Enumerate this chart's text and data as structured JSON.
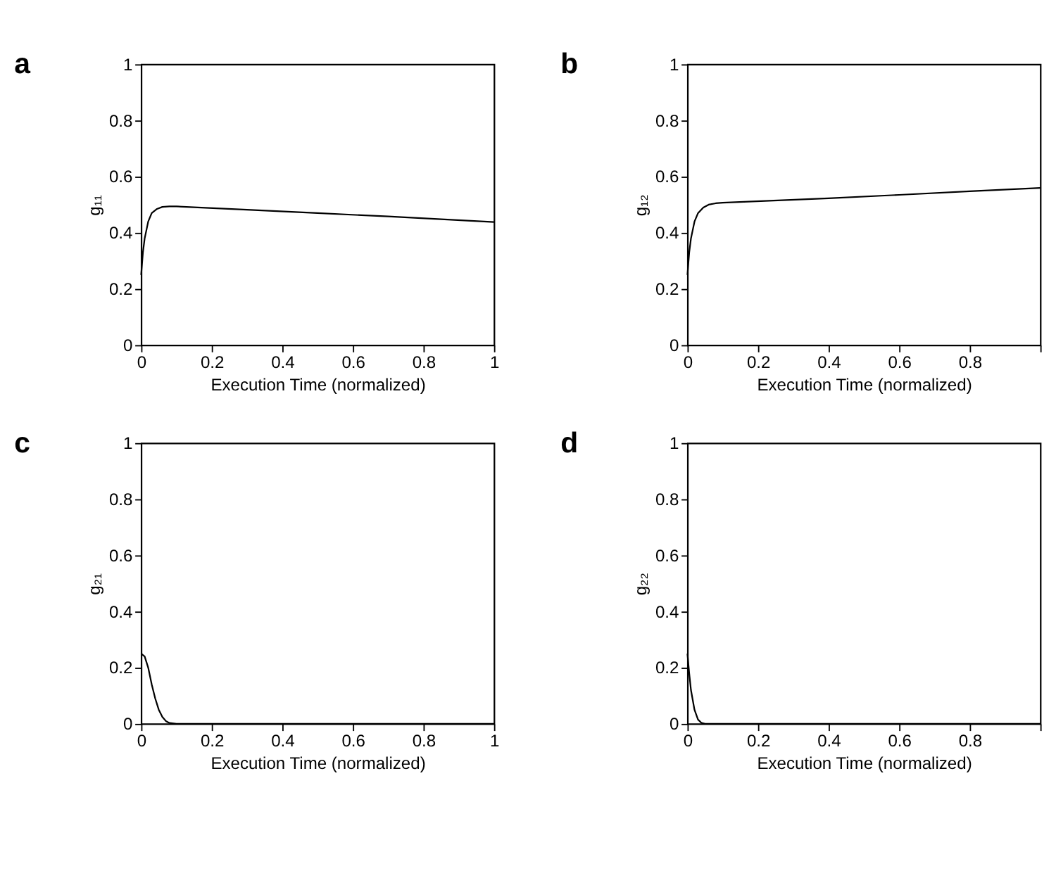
{
  "chart_data": [
    {
      "type": "line",
      "title": "a",
      "xlabel": "Execution Time (normalized)",
      "ylabel": "g₁₁",
      "xlim": [
        0,
        1
      ],
      "ylim": [
        0,
        1
      ],
      "xticks": [
        0,
        0.2,
        0.4,
        0.6,
        0.8,
        1
      ],
      "yticks": [
        0,
        0.2,
        0.4,
        0.6,
        0.8,
        1
      ],
      "grid": false,
      "series": [
        {
          "color": "#000000",
          "x": [
            0,
            0.005,
            0.01,
            0.02,
            0.03,
            0.045,
            0.06,
            0.08,
            0.1,
            0.3,
            0.5,
            0.7,
            1
          ],
          "values": [
            0.25,
            0.33,
            0.38,
            0.44,
            0.47,
            0.485,
            0.492,
            0.494,
            0.494,
            0.482,
            0.47,
            0.458,
            0.438
          ]
        }
      ]
    },
    {
      "type": "line",
      "title": "b",
      "xlabel": "Execution Time (normalized)",
      "ylabel": "g₁₂",
      "xlim": [
        0,
        1
      ],
      "ylim": [
        0,
        1
      ],
      "xticks": [
        0,
        0.2,
        0.4,
        0.6,
        0.8,
        {
          "value": 1,
          "label": null
        }
      ],
      "yticks": [
        0,
        0.2,
        0.4,
        0.6,
        0.8,
        1
      ],
      "grid": false,
      "series": [
        {
          "color": "#000000",
          "x": [
            0,
            0.005,
            0.01,
            0.02,
            0.03,
            0.045,
            0.06,
            0.08,
            0.1,
            0.4,
            0.6,
            0.8,
            1
          ],
          "values": [
            0.25,
            0.33,
            0.38,
            0.44,
            0.47,
            0.49,
            0.5,
            0.505,
            0.507,
            0.523,
            0.535,
            0.548,
            0.56
          ]
        }
      ]
    },
    {
      "type": "line",
      "title": "c",
      "xlabel": "Execution Time (normalized)",
      "ylabel": "g₂₁",
      "xlim": [
        0,
        1
      ],
      "ylim": [
        0,
        1
      ],
      "xticks": [
        0,
        0.2,
        0.4,
        0.6,
        0.8,
        1
      ],
      "yticks": [
        0,
        0.2,
        0.4,
        0.6,
        0.8,
        1
      ],
      "grid": false,
      "series": [
        {
          "color": "#000000",
          "x": [
            0,
            0.01,
            0.02,
            0.03,
            0.04,
            0.05,
            0.06,
            0.07,
            0.08,
            0.1,
            1
          ],
          "values": [
            0.25,
            0.24,
            0.2,
            0.14,
            0.09,
            0.05,
            0.025,
            0.01,
            0.003,
            0,
            0
          ]
        }
      ]
    },
    {
      "type": "line",
      "title": "d",
      "xlabel": "Execution Time (normalized)",
      "ylabel": "g₂₂",
      "xlim": [
        0,
        1
      ],
      "ylim": [
        0,
        1
      ],
      "xticks": [
        0,
        0.2,
        0.4,
        0.6,
        0.8,
        {
          "value": 1,
          "label": null
        }
      ],
      "yticks": [
        0,
        0.2,
        0.4,
        0.6,
        0.8,
        1
      ],
      "grid": false,
      "series": [
        {
          "color": "#000000",
          "x": [
            0,
            0.005,
            0.01,
            0.02,
            0.03,
            0.04,
            0.05,
            1
          ],
          "values": [
            0.25,
            0.18,
            0.12,
            0.05,
            0.015,
            0.003,
            0,
            0
          ]
        }
      ]
    }
  ]
}
